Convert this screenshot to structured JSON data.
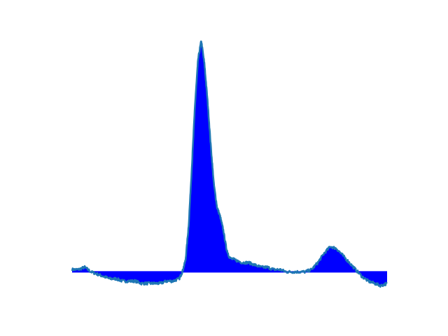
{
  "chart_data": {
    "type": "area",
    "title": "",
    "xlabel": "",
    "ylabel": "",
    "axes_visible": false,
    "grid": false,
    "xlim": [
      0,
      100
    ],
    "ylim": [
      -0.12,
      1.0
    ],
    "baseline": 0,
    "fill_color": "#0000ff",
    "line_color": "#1f77b4",
    "series": [
      {
        "x": [
          0,
          2,
          4,
          6,
          8,
          10,
          12,
          14,
          16,
          18,
          20,
          22,
          24,
          26,
          28,
          30,
          32,
          34,
          35,
          36,
          37,
          38,
          39,
          40,
          41,
          42,
          43,
          44,
          45,
          46,
          47,
          48,
          49,
          50,
          52,
          54,
          56,
          58,
          60,
          62,
          64,
          66,
          68,
          70,
          72,
          74,
          76,
          78,
          80,
          82,
          84,
          86,
          88,
          90,
          92,
          94,
          96,
          98,
          100
        ],
        "y": [
          0.01,
          0.01,
          0.02,
          0.0,
          -0.01,
          -0.02,
          -0.03,
          -0.03,
          -0.04,
          -0.04,
          -0.04,
          -0.05,
          -0.05,
          -0.05,
          -0.05,
          -0.04,
          -0.04,
          -0.03,
          0.0,
          0.05,
          0.2,
          0.45,
          0.72,
          0.92,
          1.0,
          0.9,
          0.74,
          0.55,
          0.38,
          0.28,
          0.24,
          0.18,
          0.1,
          0.06,
          0.05,
          0.04,
          0.04,
          0.03,
          0.02,
          0.02,
          0.01,
          0.01,
          0.0,
          0.0,
          0.0,
          0.0,
          0.01,
          0.04,
          0.08,
          0.11,
          0.1,
          0.07,
          0.04,
          0.01,
          -0.02,
          -0.04,
          -0.05,
          -0.06,
          -0.05
        ]
      }
    ]
  }
}
